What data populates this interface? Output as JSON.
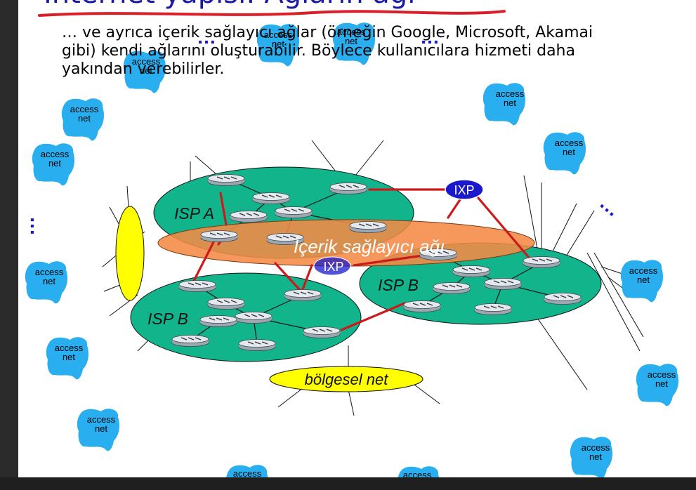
{
  "slide": {
    "title": "Internet yapısı: Ağların ağı",
    "subtitle": "… ve ayrıca içerik sağlayıcı ağlar (örneğin Google, Microsoft, Akamai gibi) kendi ağlarını oluşturabilir. Böylece kullanıcılara hizmeti daha yakından verebilirler."
  },
  "diagram": {
    "access_net_label": "access net",
    "isp_a_label": "ISP A",
    "isp_b_label": "ISP B",
    "content_provider_label": "İçerik sağlayıcı ağı",
    "ixp_label": "IXP",
    "regional_net_label": "bölgesel net",
    "ellipsis": "…",
    "colors": {
      "isp_green": "#12b48c",
      "content_orange": "#f58a45",
      "ixp_blue": "#1a1acc",
      "regional_yellow": "#ffff00",
      "access_blue": "#29aef0",
      "link_red": "#cc1a1a",
      "title_blue": "#1a1aa6"
    }
  }
}
